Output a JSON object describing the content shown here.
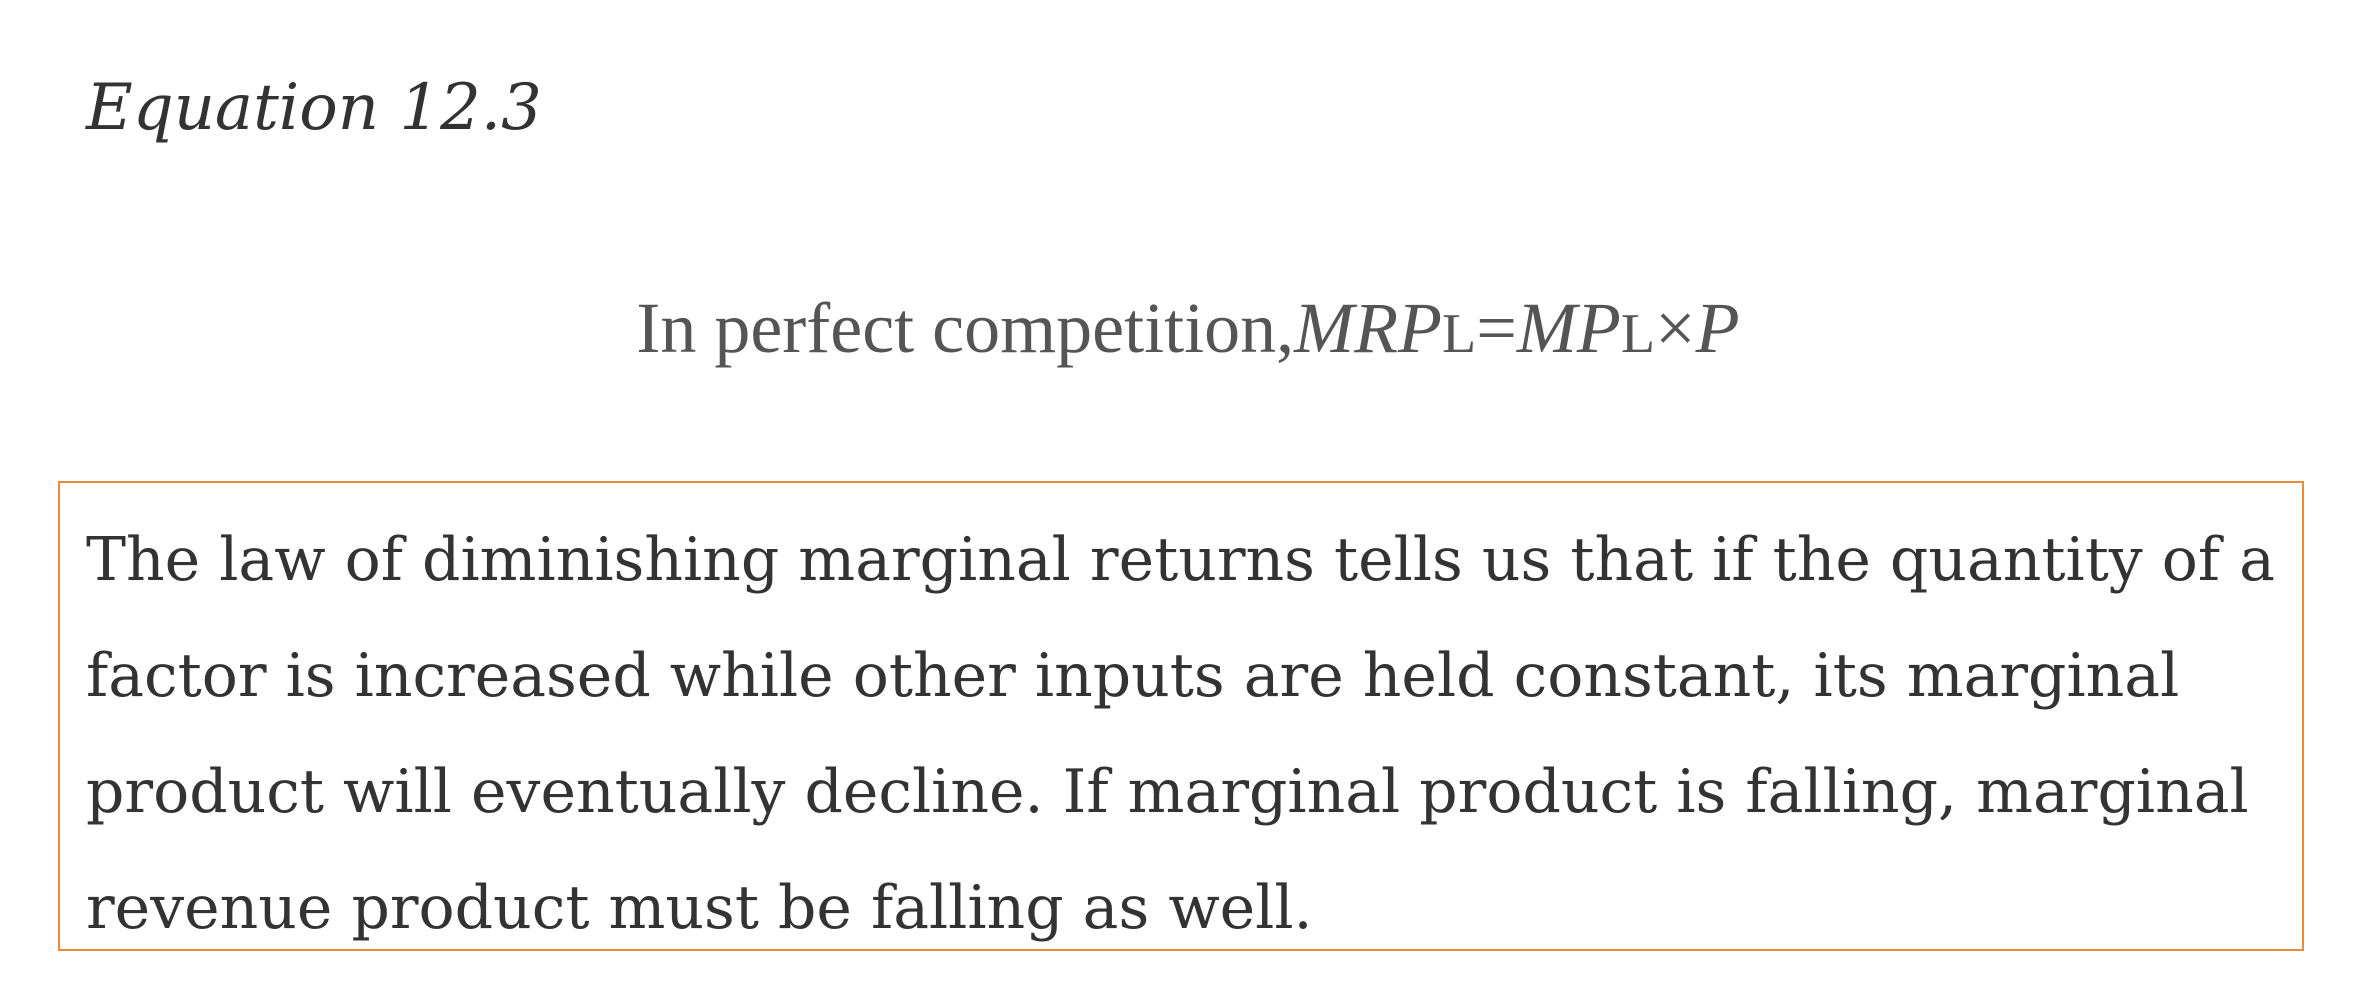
{
  "equation_label": "Equation 12.3",
  "equation": {
    "prefix": "In perfect competition",
    "comma": ",",
    "mrp": "MRP",
    "mrp_sub": "L",
    "equals": "=",
    "mp": "MP",
    "mp_sub": "L",
    "times": "×",
    "p": "P"
  },
  "note": {
    "lines": [
      "The law of diminishing marginal returns tells us that if the quantity of a",
      "factor is increased while other inputs are held constant, its marginal",
      "product will eventually decline. If marginal product is falling, marginal",
      "revenue product must be falling as well."
    ]
  },
  "colors": {
    "box_border": "#e88a3c",
    "text": "#333333",
    "equation_text": "#555555"
  }
}
